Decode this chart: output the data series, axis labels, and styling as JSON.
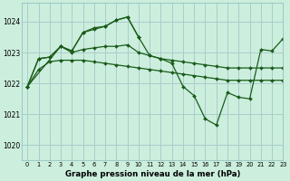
{
  "title": "Graphe pression niveau de la mer (hPa)",
  "bg_color": "#cceedd",
  "grid_color": "#aacccc",
  "line_color": "#1a5c1a",
  "marker_color": "#1a5c1a",
  "xlim": [
    -0.5,
    23
  ],
  "ylim": [
    1019.5,
    1024.6
  ],
  "yticks": [
    1020,
    1021,
    1022,
    1023,
    1024
  ],
  "xticks": [
    0,
    1,
    2,
    3,
    4,
    5,
    6,
    7,
    8,
    9,
    10,
    11,
    12,
    13,
    14,
    15,
    16,
    17,
    18,
    19,
    20,
    21,
    22,
    23
  ],
  "series": [
    {
      "x": [
        0,
        1,
        2,
        3,
        4,
        5,
        6,
        7,
        8,
        9,
        10,
        11,
        12,
        13,
        14,
        15,
        16,
        17,
        18,
        19,
        20,
        21,
        22,
        23
      ],
      "y": [
        1021.9,
        1022.45,
        1022.7,
        1022.75,
        1022.75,
        1022.75,
        1022.7,
        1022.65,
        1022.6,
        1022.55,
        1022.5,
        1022.45,
        1022.4,
        1022.35,
        1022.3,
        1022.25,
        1022.2,
        1022.15,
        1022.1,
        1022.1,
        1022.1,
        1022.1,
        1022.1,
        1022.1
      ]
    },
    {
      "x": [
        0,
        1,
        2,
        3,
        4,
        5,
        6,
        7,
        8,
        9,
        10,
        11,
        12,
        13,
        14,
        15,
        16,
        17,
        18,
        19,
        20,
        21,
        22,
        23
      ],
      "y": [
        1021.9,
        1022.8,
        1022.85,
        1023.2,
        1023.0,
        1023.1,
        1023.15,
        1023.2,
        1023.2,
        1023.25,
        1023.0,
        1022.9,
        1022.8,
        1022.75,
        1022.7,
        1022.65,
        1022.6,
        1022.55,
        1022.5,
        1022.5,
        1022.5,
        1022.5,
        1022.5,
        1022.5
      ]
    },
    {
      "x": [
        0,
        1,
        2,
        3,
        4,
        5,
        6,
        7,
        8,
        9,
        10,
        11,
        12,
        13,
        14,
        15,
        16,
        17,
        18,
        19,
        20,
        21,
        22,
        23
      ],
      "y": [
        1021.9,
        1022.8,
        1022.85,
        1023.2,
        1023.05,
        1023.65,
        1023.75,
        1023.85,
        1024.05,
        1024.15,
        1023.5,
        1022.9,
        1022.8,
        1022.65,
        1021.9,
        1021.6,
        1020.85,
        1020.65,
        1021.7,
        1021.55,
        1021.5,
        1023.1,
        1023.05,
        1023.45
      ]
    },
    {
      "x": [
        0,
        3,
        4,
        5,
        6,
        7,
        8,
        9,
        10
      ],
      "y": [
        1021.9,
        1023.2,
        1023.05,
        1023.65,
        1023.8,
        1023.85,
        1024.05,
        1024.15,
        1023.5
      ]
    }
  ]
}
